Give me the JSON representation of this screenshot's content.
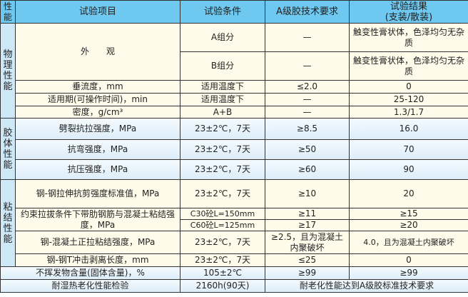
{
  "header": {
    "category": "性能",
    "item": "试验项目",
    "condition": "试验条件",
    "requirement": "A级胶技术要求",
    "result": "试验结果\n(支装/散装)"
  },
  "categories": {
    "physical": "物理性能",
    "colloid": "胶体性能",
    "bond": "粘结性能"
  },
  "rows": {
    "appearance": {
      "item": "外　　观",
      "a_cond": "A组分",
      "a_req": "—",
      "a_res": "触变性膏状体，色泽均匀无杂质",
      "b_cond": "B组分",
      "b_req": "—",
      "b_res": "触变性膏状体，色泽均匀无杂质"
    },
    "sag": {
      "item": "垂流度，mm",
      "cond": "适用温度下",
      "req": "≤2.0",
      "res": "0"
    },
    "pot_life": {
      "item": "适用期(可操作时间)，min",
      "cond": "适用温度下",
      "req": "—",
      "res": "25-120"
    },
    "density": {
      "item": "密度，g/cm³",
      "cond": "A+B",
      "req": "—",
      "res": "1.3/1.7"
    },
    "split": {
      "item": "劈裂抗拉强度，MPa",
      "cond": "23±2℃，7天",
      "req": "≥8.5",
      "res": "16.0"
    },
    "flex": {
      "item": "抗弯强度，MPa",
      "cond": "23±2℃，7天",
      "req": "≥50",
      "res": "70"
    },
    "comp": {
      "item": "抗压强度，MPa",
      "cond": "23±2℃，7天",
      "req": "≥60",
      "res": "90"
    },
    "shear": {
      "item": "钢-钢拉伸抗剪强度标准值，MPa",
      "cond": "23±2℃，7天",
      "req": "≥10",
      "res": "20"
    },
    "pullout": {
      "item": "约束拉拔条件下带肋钢筋与混凝土粘结强度，MPa",
      "c30_cond": "C30砼L=150mm",
      "c30_req": "≥11",
      "c30_res": "≥15",
      "c60_cond": "C60砼L=125mm",
      "c60_req": "≥17",
      "c60_res": "≥20"
    },
    "tensile": {
      "item": "钢-混凝土正拉粘结强度，MPa",
      "cond": "23±2℃，7天",
      "req": "≥2.5，且为混凝土内聚破坏",
      "res": "4.0，且为混凝土内聚破坏"
    },
    "peel": {
      "item": "钢-钢T冲击剥离长度，mm",
      "cond": "23±2℃，7天",
      "req": "≤25",
      "res": "0"
    },
    "nonvolatile": {
      "item": "不挥发物含量(固体含量)，%",
      "cond": "105±2℃",
      "req": "≥99",
      "res": "≥99"
    },
    "aging": {
      "item": "耐湿热老化性能检验",
      "cond": "2160h(90天)",
      "res": "耐老化性能达到A级胶标准技术要求"
    }
  }
}
